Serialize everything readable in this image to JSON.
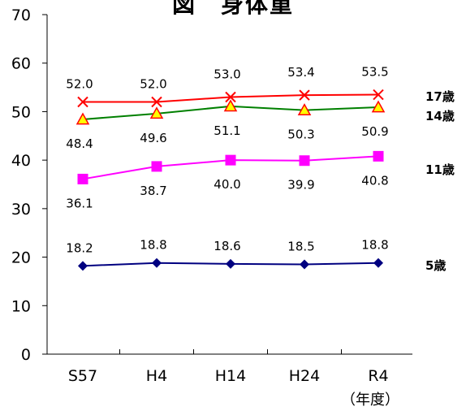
{
  "chart_data": {
    "type": "line",
    "title": "図　身体重",
    "categories": [
      "S57",
      "H4",
      "H14",
      "H24",
      "R4"
    ],
    "x_unit": "（年度）",
    "ylim": [
      0,
      70
    ],
    "y_ticks": [
      0,
      10,
      20,
      30,
      40,
      50,
      60,
      70
    ],
    "grid": false,
    "legend": "right-side labels",
    "series": [
      {
        "name": "17歳",
        "values": [
          52.0,
          52.0,
          53.0,
          53.4,
          53.5
        ],
        "color": "#ff0000",
        "marker": "x",
        "labels": [
          "52.0",
          "52.0",
          "53.0",
          "53.4",
          "53.5"
        ],
        "label_pos": "above"
      },
      {
        "name": "14歳",
        "values": [
          48.4,
          49.6,
          51.1,
          50.3,
          50.9
        ],
        "color": "#008000",
        "marker": "triangle",
        "marker_fill": "#ffff00",
        "marker_stroke": "#ff0000",
        "labels": [
          "48.4",
          "49.6",
          "51.1",
          "50.3",
          "50.9"
        ],
        "label_pos": "below"
      },
      {
        "name": "11歳",
        "values": [
          36.1,
          38.7,
          40.0,
          39.9,
          40.8
        ],
        "color": "#ff00ff",
        "marker": "square",
        "labels": [
          "36.1",
          "38.7",
          "40.0",
          "39.9",
          "40.8"
        ],
        "label_pos": "below"
      },
      {
        "name": "5歳",
        "values": [
          18.2,
          18.8,
          18.6,
          18.5,
          18.8
        ],
        "color": "#000080",
        "marker": "diamond",
        "labels": [
          "18.2",
          "18.8",
          "18.6",
          "18.5",
          "18.8"
        ],
        "label_pos": "above"
      }
    ]
  }
}
